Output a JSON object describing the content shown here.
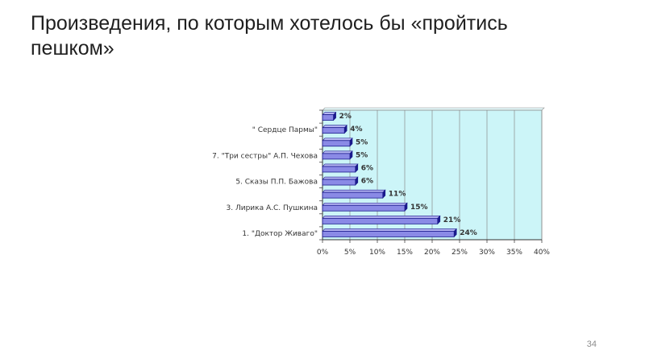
{
  "slide": {
    "title": "Произведения, по которым хотелось бы «пройтись пешком»",
    "page_number": "34"
  },
  "chart_data": {
    "type": "bar",
    "orientation": "horizontal",
    "title": "",
    "xlabel": "",
    "ylabel": "",
    "categories": [
      "1. \"Доктор Живаго\"",
      "",
      "3. Лирика А.С. Пушкина",
      "",
      "5. Сказы П.П. Бажова",
      "",
      "7. \"Три сестры\" А.П. Чехова",
      "",
      "\" Сердце Пармы\"",
      ""
    ],
    "values": [
      24,
      21,
      15,
      11,
      6,
      6,
      5,
      5,
      4,
      2
    ],
    "data_labels": [
      "24%",
      "21%",
      "15%",
      "11%",
      "6%",
      "6%",
      "5%",
      "5%",
      "4%",
      "2%"
    ],
    "xlim": [
      0,
      40
    ],
    "x_ticks": [
      "0%",
      "5%",
      "10%",
      "15%",
      "20%",
      "25%",
      "30%",
      "35%",
      "40%"
    ],
    "grid": true,
    "legend": false,
    "colors": {
      "bar_fill": "#8a8ae6",
      "bar_top": "#b4b4f2",
      "bar_edge": "#1a1a8c",
      "plot_bg": "#ccf5f8",
      "grid": "#8a8a8a",
      "text": "#333333"
    }
  }
}
